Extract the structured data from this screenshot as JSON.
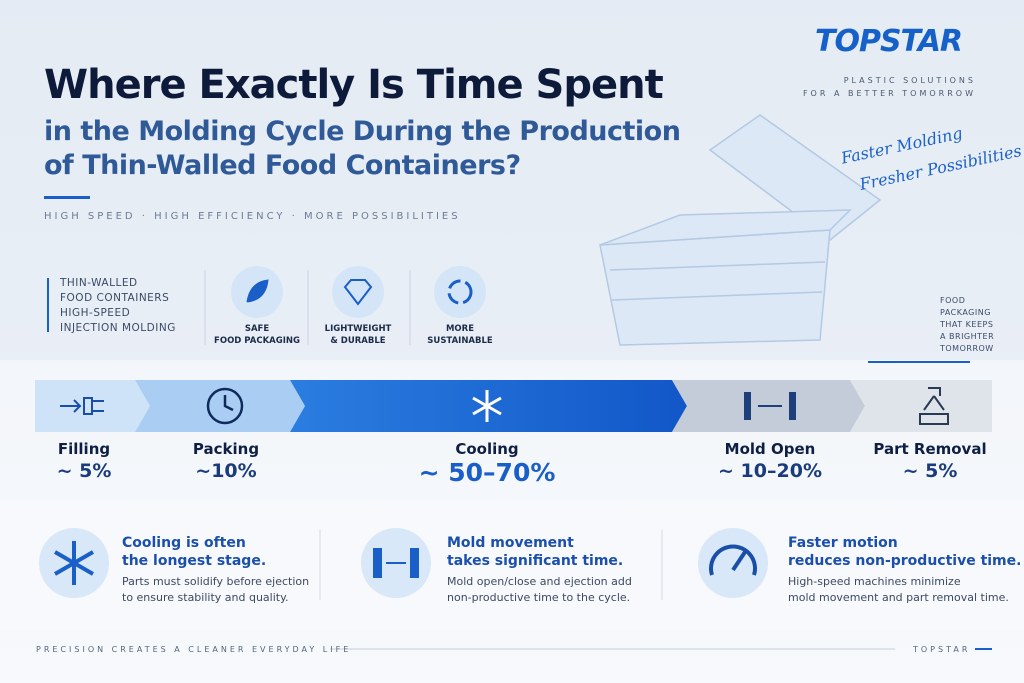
{
  "brand": {
    "logo": "TOPSTAR",
    "tagline": [
      "PLASTIC SOLUTIONS",
      "FOR A BETTER TOMORROW"
    ]
  },
  "header": {
    "title": "Where Exactly Is Time Spent",
    "subtitle": [
      "in the Molding Cycle During the Production",
      "of Thin-Walled Food Containers?"
    ],
    "keywords": "HIGH SPEED · HIGH EFFICIENCY · MORE POSSIBILITIES"
  },
  "slogan": [
    "Faster Molding",
    "Fresher Possibilities"
  ],
  "intro": [
    "THIN-WALLED",
    "FOOD CONTAINERS",
    "HIGH-SPEED",
    "INJECTION MOLDING"
  ],
  "features": [
    {
      "label": [
        "SAFE",
        "FOOD PACKAGING"
      ]
    },
    {
      "label": [
        "LIGHTWEIGHT",
        "& DURABLE"
      ]
    },
    {
      "label": [
        "MORE",
        "SUSTAINABLE"
      ]
    }
  ],
  "side_note": [
    "FOOD",
    "PACKAGING",
    "THAT KEEPS",
    "A BRIGHTER",
    "TOMORROW"
  ],
  "stages": [
    {
      "name": "Filling",
      "share": "~ 5%"
    },
    {
      "name": "Packing",
      "share": "~10%"
    },
    {
      "name": "Cooling",
      "share": "~ 50–70%"
    },
    {
      "name": "Mold Open",
      "share": "~ 10–20%"
    },
    {
      "name": "Part Removal",
      "share": "~ 5%"
    }
  ],
  "insights": [
    {
      "title": [
        "Cooling is often",
        "the longest stage."
      ],
      "body": [
        "Parts must solidify before ejection",
        "to ensure stability and quality."
      ]
    },
    {
      "title": [
        "Mold movement",
        "takes significant time."
      ],
      "body": [
        "Mold open/close and ejection add",
        "non-productive time to the cycle."
      ]
    },
    {
      "title": [
        "Faster motion",
        "reduces non-productive time."
      ],
      "body": [
        "High-speed machines minimize",
        "mold movement and part removal time."
      ]
    }
  ],
  "footer": {
    "left": "PRECISION CREATES A CLEANER EVERYDAY LIFE",
    "right": "TOPSTAR"
  }
}
